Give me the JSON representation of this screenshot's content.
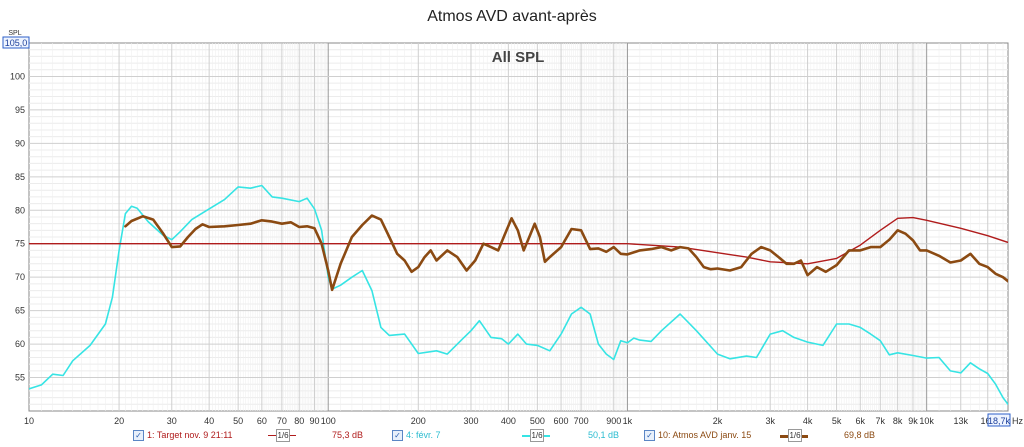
{
  "title": "Atmos AVD avant-après",
  "chart_data": {
    "type": "line",
    "title": "All SPL",
    "ylabel": "SPL",
    "xlabel": "Hz",
    "x_scale": "log",
    "xlim": [
      10,
      18700
    ],
    "ylim": [
      50,
      105
    ],
    "y_top_label": "105,0",
    "x_end_label": "18,7k",
    "grid": true,
    "x_ticks": [
      {
        "v": 10,
        "t": "10"
      },
      {
        "v": 20,
        "t": "20"
      },
      {
        "v": 30,
        "t": "30"
      },
      {
        "v": 40,
        "t": "40"
      },
      {
        "v": 50,
        "t": "50"
      },
      {
        "v": 60,
        "t": "60"
      },
      {
        "v": 70,
        "t": "70"
      },
      {
        "v": 80,
        "t": "80"
      },
      {
        "v": 90,
        "t": "90"
      },
      {
        "v": 100,
        "t": "100"
      },
      {
        "v": 200,
        "t": "200"
      },
      {
        "v": 300,
        "t": "300"
      },
      {
        "v": 400,
        "t": "400"
      },
      {
        "v": 500,
        "t": "500"
      },
      {
        "v": 600,
        "t": "600"
      },
      {
        "v": 700,
        "t": "700"
      },
      {
        "v": 900,
        "t": "900"
      },
      {
        "v": 1000,
        "t": "1k"
      },
      {
        "v": 2000,
        "t": "2k"
      },
      {
        "v": 3000,
        "t": "3k"
      },
      {
        "v": 4000,
        "t": "4k"
      },
      {
        "v": 5000,
        "t": "5k"
      },
      {
        "v": 6000,
        "t": "6k"
      },
      {
        "v": 7000,
        "t": "7k"
      },
      {
        "v": 8000,
        "t": "8k"
      },
      {
        "v": 9000,
        "t": "9k"
      },
      {
        "v": 10000,
        "t": "10k"
      },
      {
        "v": 13000,
        "t": "13k"
      },
      {
        "v": 16000,
        "t": "16k"
      }
    ],
    "y_ticks": [
      55,
      60,
      65,
      70,
      75,
      80,
      85,
      90,
      95,
      100
    ],
    "series": [
      {
        "name": "1: Target nov. 9 21:11",
        "color": "#b01c1c",
        "width": 1.4,
        "smoothing": "1/6",
        "level": "75,3 dB",
        "points": [
          [
            10,
            75
          ],
          [
            1000,
            75
          ],
          [
            1500,
            74.5
          ],
          [
            2500,
            73
          ],
          [
            3000,
            72.3
          ],
          [
            4000,
            72
          ],
          [
            5000,
            72.8
          ],
          [
            6000,
            74.8
          ],
          [
            7000,
            77
          ],
          [
            8000,
            78.8
          ],
          [
            9000,
            78.9
          ],
          [
            10000,
            78.5
          ],
          [
            13000,
            77.3
          ],
          [
            16000,
            76.2
          ],
          [
            18700,
            75.2
          ]
        ]
      },
      {
        "name": "4: févr. 7",
        "color": "#36e4e4",
        "width": 1.6,
        "smoothing": "1/6",
        "level": "50,1 dB",
        "points": [
          [
            10,
            53.3
          ],
          [
            11,
            53.9
          ],
          [
            12,
            55.5
          ],
          [
            13,
            55.3
          ],
          [
            14,
            57.5
          ],
          [
            16,
            59.8
          ],
          [
            18,
            63
          ],
          [
            19,
            67
          ],
          [
            20,
            74
          ],
          [
            21,
            79.5
          ],
          [
            22,
            80.6
          ],
          [
            23,
            80.3
          ],
          [
            25,
            78.3
          ],
          [
            28,
            76.3
          ],
          [
            30,
            75.6
          ],
          [
            32,
            76.8
          ],
          [
            35,
            78.6
          ],
          [
            40,
            80.2
          ],
          [
            45,
            81.6
          ],
          [
            50,
            83.5
          ],
          [
            55,
            83.3
          ],
          [
            60,
            83.7
          ],
          [
            65,
            82
          ],
          [
            70,
            81.8
          ],
          [
            80,
            81.3
          ],
          [
            85,
            81.8
          ],
          [
            90,
            80.2
          ],
          [
            95,
            77
          ],
          [
            100,
            70
          ],
          [
            103,
            68.2
          ],
          [
            110,
            68.8
          ],
          [
            120,
            70
          ],
          [
            130,
            71
          ],
          [
            140,
            68
          ],
          [
            150,
            62.5
          ],
          [
            160,
            61.3
          ],
          [
            180,
            61.5
          ],
          [
            200,
            58.6
          ],
          [
            230,
            59
          ],
          [
            250,
            58.5
          ],
          [
            280,
            60.7
          ],
          [
            300,
            62
          ],
          [
            320,
            63.5
          ],
          [
            350,
            61
          ],
          [
            380,
            60.8
          ],
          [
            400,
            60
          ],
          [
            430,
            61.5
          ],
          [
            460,
            60
          ],
          [
            500,
            59.8
          ],
          [
            550,
            59
          ],
          [
            600,
            61.5
          ],
          [
            650,
            64.5
          ],
          [
            700,
            65.5
          ],
          [
            750,
            64.5
          ],
          [
            800,
            60
          ],
          [
            850,
            58.5
          ],
          [
            900,
            57.7
          ],
          [
            950,
            60.5
          ],
          [
            1000,
            60.2
          ],
          [
            1050,
            60.9
          ],
          [
            1100,
            60.6
          ],
          [
            1200,
            60.4
          ],
          [
            1300,
            62
          ],
          [
            1500,
            64.5
          ],
          [
            1700,
            62
          ],
          [
            2000,
            58.5
          ],
          [
            2200,
            57.8
          ],
          [
            2500,
            58.2
          ],
          [
            2700,
            58
          ],
          [
            3000,
            61.5
          ],
          [
            3300,
            62
          ],
          [
            3600,
            61
          ],
          [
            4000,
            60.3
          ],
          [
            4500,
            59.8
          ],
          [
            5000,
            63
          ],
          [
            5500,
            63
          ],
          [
            6000,
            62.5
          ],
          [
            6500,
            61.5
          ],
          [
            7000,
            60.5
          ],
          [
            7500,
            58.4
          ],
          [
            8000,
            58.7
          ],
          [
            9000,
            58.3
          ],
          [
            10000,
            57.9
          ],
          [
            11000,
            58
          ],
          [
            12000,
            56
          ],
          [
            13000,
            55.7
          ],
          [
            14000,
            57.2
          ],
          [
            15000,
            56.3
          ],
          [
            16000,
            55.6
          ],
          [
            17000,
            54
          ],
          [
            18000,
            52
          ],
          [
            18700,
            51
          ]
        ]
      },
      {
        "name": "10: Atmos AVD janv. 15",
        "color": "#8b4a12",
        "width": 2.6,
        "smoothing": "1/6",
        "level": "69,8 dB",
        "points": [
          [
            21,
            77.6
          ],
          [
            22,
            78.4
          ],
          [
            24,
            79.1
          ],
          [
            26,
            78.6
          ],
          [
            28,
            76.6
          ],
          [
            30,
            74.5
          ],
          [
            32,
            74.6
          ],
          [
            34,
            76
          ],
          [
            36,
            77.2
          ],
          [
            38,
            77.9
          ],
          [
            40,
            77.5
          ],
          [
            45,
            77.6
          ],
          [
            50,
            77.8
          ],
          [
            55,
            78
          ],
          [
            60,
            78.5
          ],
          [
            65,
            78.3
          ],
          [
            70,
            78
          ],
          [
            75,
            78.2
          ],
          [
            80,
            77.5
          ],
          [
            85,
            77.6
          ],
          [
            90,
            77.3
          ],
          [
            95,
            75
          ],
          [
            100,
            71
          ],
          [
            103,
            68.1
          ],
          [
            110,
            72
          ],
          [
            120,
            76
          ],
          [
            130,
            77.8
          ],
          [
            140,
            79.2
          ],
          [
            150,
            78.6
          ],
          [
            160,
            76
          ],
          [
            170,
            73.5
          ],
          [
            180,
            72.5
          ],
          [
            190,
            70.8
          ],
          [
            200,
            71.5
          ],
          [
            210,
            73
          ],
          [
            220,
            74
          ],
          [
            230,
            72.5
          ],
          [
            250,
            74
          ],
          [
            270,
            73
          ],
          [
            290,
            71
          ],
          [
            310,
            72.5
          ],
          [
            330,
            75
          ],
          [
            350,
            74.5
          ],
          [
            370,
            74
          ],
          [
            390,
            76.5
          ],
          [
            410,
            78.8
          ],
          [
            430,
            77
          ],
          [
            450,
            74
          ],
          [
            470,
            76
          ],
          [
            490,
            78
          ],
          [
            510,
            76
          ],
          [
            530,
            72.3
          ],
          [
            550,
            73
          ],
          [
            600,
            74.5
          ],
          [
            650,
            77.2
          ],
          [
            700,
            77
          ],
          [
            750,
            74.2
          ],
          [
            800,
            74.3
          ],
          [
            850,
            73.8
          ],
          [
            900,
            74.5
          ],
          [
            950,
            73.5
          ],
          [
            1000,
            73.4
          ],
          [
            1100,
            74
          ],
          [
            1200,
            74.2
          ],
          [
            1300,
            74.5
          ],
          [
            1400,
            74
          ],
          [
            1500,
            74.5
          ],
          [
            1600,
            74.3
          ],
          [
            1700,
            73
          ],
          [
            1800,
            71.5
          ],
          [
            1900,
            71.2
          ],
          [
            2000,
            71.3
          ],
          [
            2200,
            71
          ],
          [
            2400,
            71.5
          ],
          [
            2600,
            73.5
          ],
          [
            2800,
            74.5
          ],
          [
            3000,
            74
          ],
          [
            3200,
            73
          ],
          [
            3400,
            72
          ],
          [
            3600,
            72
          ],
          [
            3800,
            72.5
          ],
          [
            4000,
            70.3
          ],
          [
            4300,
            71.5
          ],
          [
            4600,
            70.8
          ],
          [
            5000,
            71.8
          ],
          [
            5500,
            74
          ],
          [
            6000,
            74
          ],
          [
            6500,
            74.5
          ],
          [
            7000,
            74.5
          ],
          [
            7500,
            75.6
          ],
          [
            8000,
            77
          ],
          [
            8500,
            76.5
          ],
          [
            9000,
            75.5
          ],
          [
            9500,
            74
          ],
          [
            10000,
            74
          ],
          [
            11000,
            73.2
          ],
          [
            12000,
            72.2
          ],
          [
            13000,
            72.5
          ],
          [
            14000,
            73.5
          ],
          [
            15000,
            72
          ],
          [
            16000,
            71.5
          ],
          [
            17000,
            70.5
          ],
          [
            18000,
            70
          ],
          [
            18700,
            69.4
          ]
        ]
      }
    ]
  }
}
